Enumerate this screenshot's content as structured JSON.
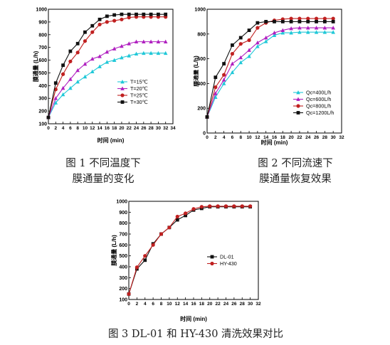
{
  "captions": [
    {
      "line1": "图 1    不同温度下",
      "line2": "膜通量的变化"
    },
    {
      "line1": "图 2    不同流速下",
      "line2": "膜通量恢复效果"
    },
    {
      "line1": "图 3    DL-01 和 HY-430 清洗效果对比"
    }
  ],
  "chart_data": [
    {
      "type": "line",
      "xlabel": "时间 (min)",
      "ylabel": "膜通量 (L/h)",
      "xlim": [
        0,
        34
      ],
      "ylim": [
        100,
        1000
      ],
      "xticks": [
        0,
        2,
        4,
        6,
        8,
        10,
        12,
        14,
        16,
        18,
        20,
        22,
        24,
        26,
        28,
        30,
        32,
        34
      ],
      "yticks": [
        100,
        200,
        300,
        400,
        500,
        600,
        700,
        800,
        900,
        1000
      ],
      "legend": "center-right",
      "x": [
        0,
        2,
        4,
        6,
        8,
        10,
        12,
        14,
        16,
        18,
        20,
        22,
        24,
        26,
        28,
        30,
        32
      ],
      "series": [
        {
          "name": "T=15℃",
          "color": "#20c8d8",
          "marker": "triangle",
          "values": [
            150,
            265,
            330,
            380,
            430,
            470,
            510,
            550,
            585,
            600,
            620,
            635,
            650,
            655,
            655,
            655,
            655
          ]
        },
        {
          "name": "T=20℃",
          "color": "#b020c0",
          "marker": "triangle",
          "values": [
            150,
            300,
            380,
            450,
            520,
            570,
            610,
            630,
            665,
            690,
            710,
            730,
            745,
            745,
            745,
            745,
            745
          ]
        },
        {
          "name": "T=25℃",
          "color": "#c02020",
          "marker": "circle",
          "values": [
            150,
            370,
            490,
            590,
            660,
            750,
            820,
            880,
            900,
            910,
            920,
            935,
            940,
            940,
            940,
            940,
            940
          ]
        },
        {
          "name": "T=30℃",
          "color": "#111111",
          "marker": "square",
          "values": [
            150,
            420,
            560,
            670,
            730,
            820,
            870,
            920,
            945,
            955,
            960,
            960,
            960,
            960,
            960,
            960,
            960
          ]
        }
      ]
    },
    {
      "type": "line",
      "xlabel": "时间 (min)",
      "ylabel": "膜通量 (L/h)",
      "xlim": [
        0,
        32
      ],
      "ylim": [
        0,
        1000
      ],
      "xticks": [
        0,
        2,
        4,
        6,
        8,
        10,
        12,
        14,
        16,
        18,
        20,
        22,
        24,
        26,
        28,
        30,
        32
      ],
      "yticks": [
        0,
        200,
        400,
        600,
        800,
        1000
      ],
      "legend": "bottom-right",
      "x": [
        0,
        2,
        4,
        6,
        8,
        10,
        12,
        14,
        16,
        18,
        20,
        22,
        24,
        26,
        28,
        30
      ],
      "series": [
        {
          "name": "Qc=400L/h",
          "color": "#20c8d8",
          "marker": "triangle",
          "values": [
            130,
            290,
            400,
            490,
            570,
            620,
            700,
            740,
            790,
            810,
            810,
            815,
            815,
            815,
            815,
            815
          ]
        },
        {
          "name": "Qc=600L/h",
          "color": "#b020c0",
          "marker": "triangle",
          "values": [
            130,
            320,
            430,
            560,
            610,
            670,
            730,
            770,
            810,
            830,
            845,
            850,
            850,
            850,
            850,
            850
          ]
        },
        {
          "name": "Qc=800L/h",
          "color": "#c02020",
          "marker": "circle",
          "values": [
            130,
            370,
            470,
            640,
            720,
            750,
            850,
            890,
            910,
            920,
            925,
            925,
            925,
            925,
            925,
            925
          ]
        },
        {
          "name": "Qc=1200L/h",
          "color": "#111111",
          "marker": "square",
          "values": [
            130,
            450,
            560,
            710,
            770,
            830,
            890,
            900,
            900,
            900,
            900,
            900,
            900,
            900,
            900,
            900
          ]
        }
      ]
    },
    {
      "type": "line",
      "xlabel": "时间 (min)",
      "ylabel": "膜通量 (L/h)",
      "xlim": [
        0,
        32
      ],
      "ylim": [
        100,
        1000
      ],
      "xticks": [
        0,
        2,
        4,
        6,
        8,
        10,
        12,
        14,
        16,
        18,
        20,
        22,
        24,
        26,
        28,
        30,
        32
      ],
      "yticks": [
        100,
        200,
        300,
        400,
        500,
        600,
        700,
        800,
        900,
        1000
      ],
      "legend": "center-right",
      "x": [
        0,
        2,
        4,
        6,
        8,
        10,
        12,
        14,
        16,
        18,
        20,
        22,
        24,
        26,
        28,
        30
      ],
      "series": [
        {
          "name": "DL-01",
          "color": "#111111",
          "marker": "square",
          "values": [
            150,
            380,
            460,
            610,
            700,
            760,
            830,
            870,
            920,
            935,
            950,
            950,
            950,
            950,
            950,
            950
          ]
        },
        {
          "name": "HY-430",
          "color": "#c02020",
          "marker": "circle",
          "values": [
            150,
            395,
            500,
            600,
            700,
            760,
            860,
            890,
            930,
            950,
            955,
            955,
            955,
            955,
            955,
            955
          ]
        }
      ]
    }
  ]
}
